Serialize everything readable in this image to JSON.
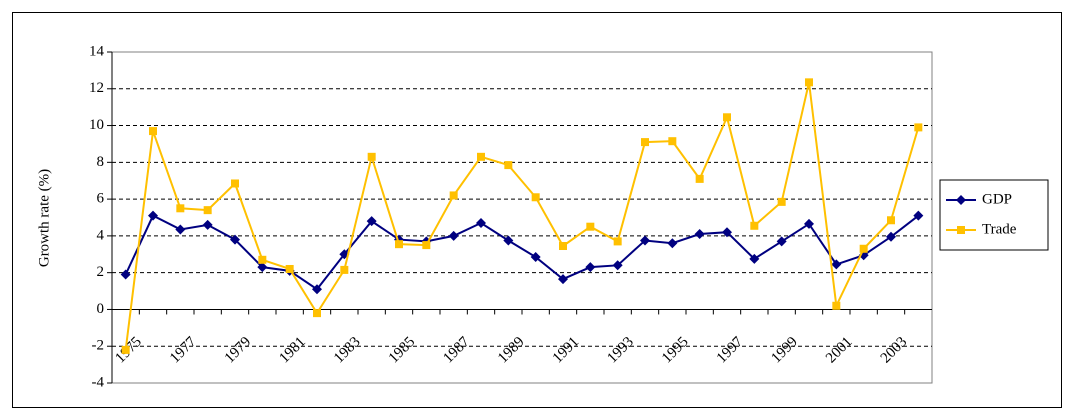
{
  "chart_data": {
    "type": "line",
    "y_label": "Growth rate (%)",
    "categories": [
      "1975",
      null,
      "1977",
      null,
      "1979",
      null,
      "1981",
      null,
      "1983",
      null,
      "1985",
      null,
      "1987",
      null,
      "1989",
      null,
      "1991",
      null,
      "1993",
      null,
      "1995",
      null,
      "1997",
      null,
      "1999",
      null,
      "2001",
      null,
      "2003",
      null
    ],
    "series": [
      {
        "name": "GDP",
        "color": "#000080",
        "marker": "diamond",
        "values": [
          1.9,
          5.1,
          4.35,
          4.6,
          3.8,
          2.3,
          2.1,
          1.1,
          3.0,
          4.8,
          3.8,
          3.7,
          4.0,
          4.7,
          3.75,
          2.85,
          1.65,
          2.3,
          2.4,
          3.75,
          3.6,
          4.1,
          4.2,
          2.75,
          3.7,
          4.65,
          2.45,
          2.95,
          3.95,
          5.1
        ]
      },
      {
        "name": "Trade",
        "color": "#FFC000",
        "marker": "square",
        "values": [
          -2.2,
          9.7,
          5.5,
          5.4,
          6.85,
          2.7,
          2.2,
          -0.2,
          2.15,
          8.3,
          3.55,
          3.5,
          6.2,
          8.3,
          7.85,
          6.1,
          3.45,
          4.5,
          3.7,
          9.1,
          9.15,
          7.1,
          10.45,
          4.55,
          5.85,
          12.35,
          0.2,
          3.3,
          4.85,
          9.9
        ]
      }
    ],
    "ylim": [
      -4,
      14
    ],
    "yticks": [
      -4,
      -2,
      0,
      2,
      4,
      6,
      8,
      10,
      12,
      14
    ],
    "grid": true,
    "legend": "right"
  }
}
